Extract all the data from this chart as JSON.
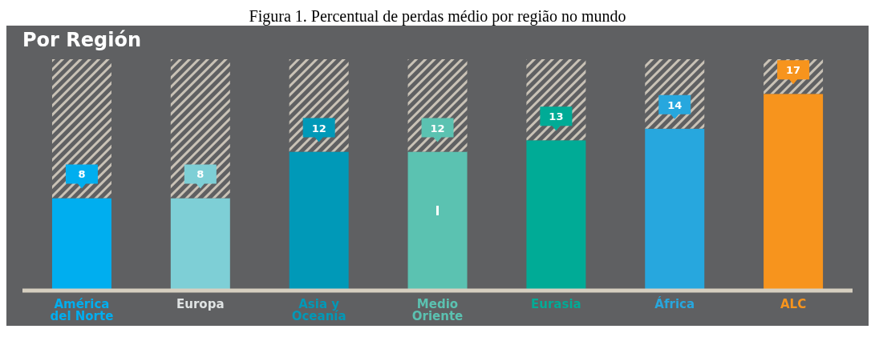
{
  "chart_data": {
    "type": "bar",
    "title": "Figura 1. Percentual de perdas médio por região no mundo",
    "subtitle": "Por Región",
    "categories": [
      "América del Norte",
      "Europa",
      "Asia y Oceanía",
      "Medio Oriente",
      "Eurasia",
      "África",
      "ALC"
    ],
    "stacked": true,
    "series": [
      {
        "values": [
          8,
          8,
          12,
          12,
          13,
          14,
          17
        ],
        "colors": [
          "#00aeef",
          "#7ecfd6",
          "#0099b8",
          "#5bc2b1",
          "#00ab96",
          "#27a7de",
          "#f7941d"
        ],
        "value_labels": [
          "8",
          "8",
          "12",
          "12",
          "13",
          "14",
          "17"
        ]
      },
      {
        "values": [
          12,
          12,
          8,
          8,
          7,
          6,
          3
        ],
        "color": "#c9c2b6"
      }
    ],
    "annotations": [
      "I"
    ]
  }
}
